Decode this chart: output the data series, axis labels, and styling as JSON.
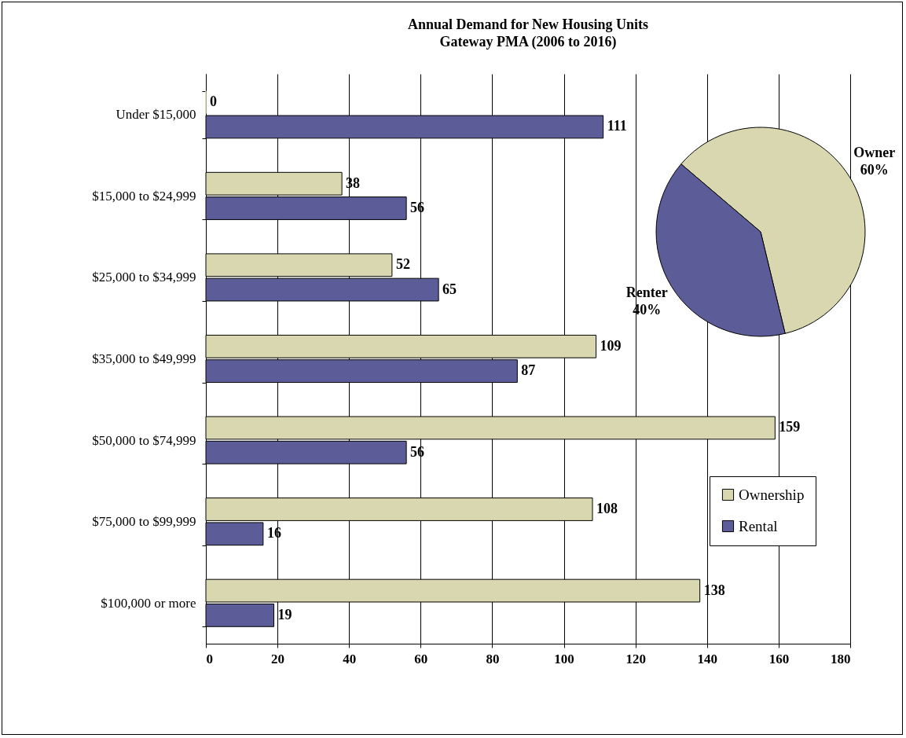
{
  "chart_data": [
    {
      "type": "bar",
      "orientation": "horizontal",
      "title": "Annual Demand for New Housing Units\nGateway PMA (2006 to 2016)",
      "categories": [
        "Under $15,000",
        "$15,000 to $24,999",
        "$25,000 to $34,999",
        "$35,000 to $49,999",
        "$50,000 to $74,999",
        "$75,000 to $99,999",
        "$100,000 or more"
      ],
      "series": [
        {
          "name": "Ownership",
          "color": "#d9d7b0",
          "values": [
            0,
            38,
            52,
            109,
            159,
            108,
            138
          ]
        },
        {
          "name": "Rental",
          "color": "#5c5c98",
          "values": [
            111,
            56,
            65,
            87,
            56,
            16,
            19
          ]
        }
      ],
      "xlim": [
        0,
        180
      ],
      "xticks": [
        0,
        20,
        40,
        60,
        80,
        100,
        120,
        140,
        160,
        180
      ],
      "grid": "x",
      "data_labels": true,
      "legend": "bottom right"
    },
    {
      "type": "pie",
      "categories": [
        "Owner",
        "Renter"
      ],
      "values": [
        60,
        40
      ],
      "colors": [
        "#d9d7b0",
        "#5c5c98"
      ],
      "value_labels": [
        "60%",
        "40%"
      ]
    }
  ]
}
